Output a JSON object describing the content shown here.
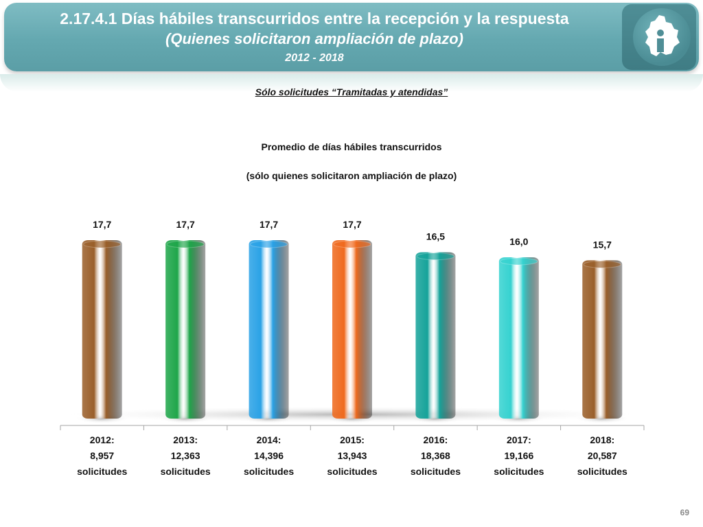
{
  "header": {
    "title": "2.17.4.1 Días hábiles transcurridos entre la recepción y la respuesta",
    "subtitle": "(Quienes solicitaron ampliación de plazo)",
    "years": "2012 - 2018"
  },
  "note": "Sólo solicitudes “Tramitadas y atendidas”",
  "page_number": "69",
  "logo": {
    "icon": "cdmx-map-info-icon"
  },
  "chart_data": {
    "type": "bar",
    "title": "Promedio de días hábiles transcurridos",
    "subtitle": "(sólo quienes solicitaron ampliación de plazo)",
    "categories": [
      [
        "2012:",
        "8,957",
        "solicitudes"
      ],
      [
        "2013:",
        "12,363",
        "solicitudes"
      ],
      [
        "2014:",
        "14,396",
        "solicitudes"
      ],
      [
        "2015:",
        "13,943",
        "solicitudes"
      ],
      [
        "2016:",
        "18,368",
        "solicitudes"
      ],
      [
        "2017:",
        "19,166",
        "solicitudes"
      ],
      [
        "2018:",
        "20,587",
        "solicitudes"
      ]
    ],
    "values": [
      17.7,
      17.7,
      17.7,
      17.7,
      16.5,
      16.0,
      15.7
    ],
    "value_labels": [
      "17,7",
      "17,7",
      "17,7",
      "17,7",
      "16,5",
      "16,0",
      "15,7"
    ],
    "colors": [
      "#9a5f2a",
      "#1fa64a",
      "#2aa2e6",
      "#ef6a1e",
      "#16a39a",
      "#35d2d0",
      "#9a5f2a"
    ],
    "ylim": [
      0,
      17.7
    ],
    "grid": false,
    "legend": "none"
  }
}
